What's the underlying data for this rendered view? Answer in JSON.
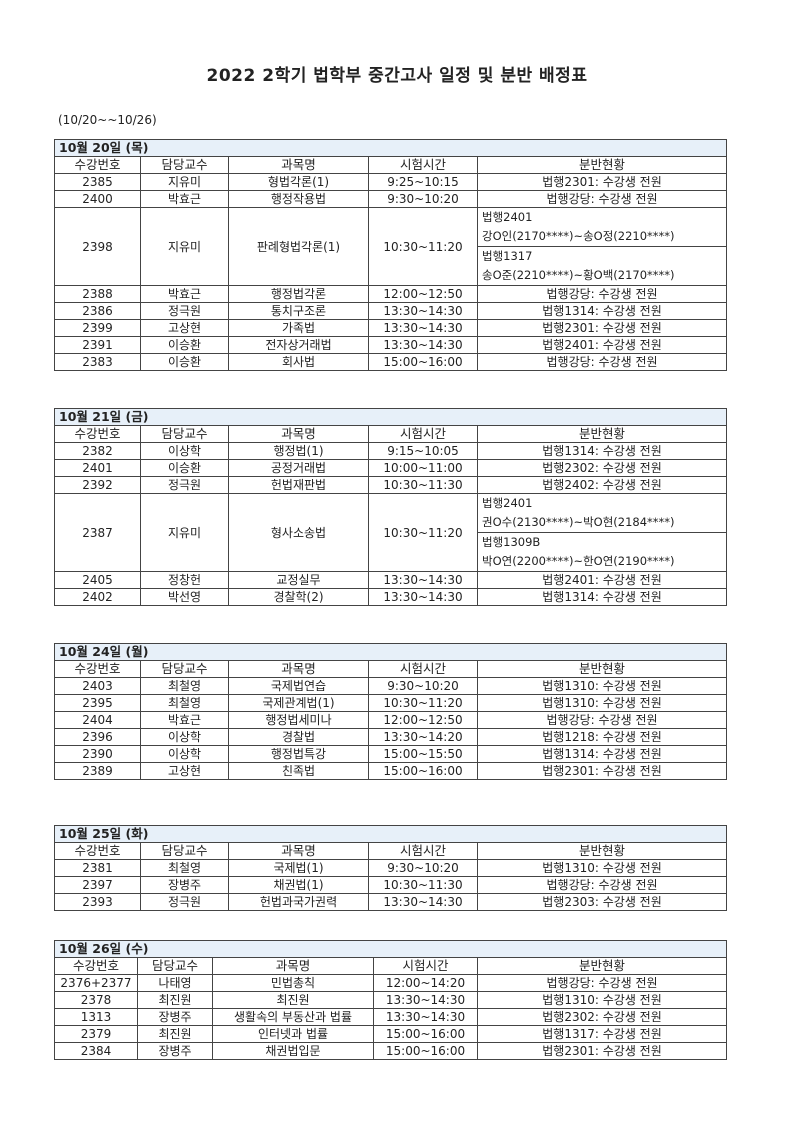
{
  "title": "2022 2학기 법학부 중간고사 일정 및 분반 배정표",
  "period": "(10/20~~10/26)",
  "headers": [
    "수강번호",
    "담당교수",
    "과목명",
    "시험시간",
    "분반현황"
  ],
  "days": [
    {
      "date": "10월 20일 (목)",
      "rows": [
        {
          "no": "2385",
          "prof": "지유미",
          "course": "형법각론(1)",
          "time": "9:25~10:15",
          "room": "법행2301: 수강생 전원"
        },
        {
          "no": "2400",
          "prof": "박효근",
          "course": "행정작용법",
          "time": "9:30~10:20",
          "room": "법행강당: 수강생 전원"
        },
        {
          "no": "2398",
          "prof": "지유미",
          "course": "판례형법각론(1)",
          "time": "10:30~11:20",
          "splits": [
            {
              "room": "법행2401",
              "students": "강O인(2170****)~송O정(2210****)"
            },
            {
              "room": "법행1317",
              "students": "송O준(2210****)~황O백(2170****)"
            }
          ]
        },
        {
          "no": "2388",
          "prof": "박효근",
          "course": "행정법각론",
          "time": "12:00~12:50",
          "room": "법행강당: 수강생 전원"
        },
        {
          "no": "2386",
          "prof": "정극원",
          "course": "통치구조론",
          "time": "13:30~14:30",
          "room": "법행1314: 수강생 전원"
        },
        {
          "no": "2399",
          "prof": "고상현",
          "course": "가족법",
          "time": "13:30~14:30",
          "room": "법행2301: 수강생 전원"
        },
        {
          "no": "2391",
          "prof": "이승환",
          "course": "전자상거래법",
          "time": "13:30~14:30",
          "room": "법행2401: 수강생 전원"
        },
        {
          "no": "2383",
          "prof": "이승환",
          "course": "회사법",
          "time": "15:00~16:00",
          "room": "법행강당: 수강생 전원"
        }
      ]
    },
    {
      "date": "10월 21일 (금)",
      "rows": [
        {
          "no": "2382",
          "prof": "이상학",
          "course": "행정법(1)",
          "time": "9:15~10:05",
          "room": "법행1314: 수강생 전원"
        },
        {
          "no": "2401",
          "prof": "이승환",
          "course": "공정거래법",
          "time": "10:00~11:00",
          "room": "법행2302: 수강생 전원"
        },
        {
          "no": "2392",
          "prof": "정극원",
          "course": "헌법재판법",
          "time": "10:30~11:30",
          "room": "법행2402: 수강생 전원"
        },
        {
          "no": "2387",
          "prof": "지유미",
          "course": "형사소송법",
          "time": "10:30~11:20",
          "splits": [
            {
              "room": "법행2401",
              "students": "권O수(2130****)~박O현(2184****)"
            },
            {
              "room": "법행1309B",
              "students": "박O연(2200****)~한O연(2190****)"
            }
          ]
        },
        {
          "no": "2405",
          "prof": "정창헌",
          "course": "교정실무",
          "time": "13:30~14:30",
          "room": "법행2401: 수강생 전원"
        },
        {
          "no": "2402",
          "prof": "박선영",
          "course": "경찰학(2)",
          "time": "13:30~14:30",
          "room": "법행1314: 수강생 전원"
        }
      ]
    },
    {
      "date": "10월 24일 (월)",
      "rows": [
        {
          "no": "2403",
          "prof": "최철영",
          "course": "국제법연습",
          "time": "9:30~10:20",
          "room": "법행1310: 수강생 전원"
        },
        {
          "no": "2395",
          "prof": "최철영",
          "course": "국제관계법(1)",
          "time": "10:30~11:20",
          "room": "법행1310: 수강생 전원"
        },
        {
          "no": "2404",
          "prof": "박효근",
          "course": "행정법세미나",
          "time": "12:00~12:50",
          "room": "법행강당: 수강생 전원"
        },
        {
          "no": "2396",
          "prof": "이상학",
          "course": "경찰법",
          "time": "13:30~14:20",
          "room": "법행1218: 수강생 전원"
        },
        {
          "no": "2390",
          "prof": "이상학",
          "course": "행정법특강",
          "time": "15:00~15:50",
          "room": "법행1314: 수강생 전원"
        },
        {
          "no": "2389",
          "prof": "고상현",
          "course": "친족법",
          "time": "15:00~16:00",
          "room": "법행2301: 수강생 전원"
        }
      ]
    },
    {
      "date": "10월 25일 (화)",
      "rows": [
        {
          "no": "2381",
          "prof": "최철영",
          "course": "국제법(1)",
          "time": "9:30~10:20",
          "room": "법행1310: 수강생 전원"
        },
        {
          "no": "2397",
          "prof": "장병주",
          "course": "채권법(1)",
          "time": "10:30~11:30",
          "room": "법행강당: 수강생 전원"
        },
        {
          "no": "2393",
          "prof": "정극원",
          "course": "헌법과국가권력",
          "time": "13:30~14:30",
          "room": "법행2303: 수강생 전원"
        }
      ]
    },
    {
      "date": "10월 26일 (수)",
      "rows": [
        {
          "no": "2376+2377",
          "prof": "나태영",
          "course": "민법총칙",
          "time": "12:00~14:20",
          "room": "법행강당: 수강생 전원"
        },
        {
          "no": "2378",
          "prof": "최진원",
          "course": "최진원",
          "time": "13:30~14:30",
          "room": "법행1310: 수강생 전원"
        },
        {
          "no": "1313",
          "prof": "장병주",
          "course": "생활속의 부동산과 법률",
          "time": "13:30~14:30",
          "room": "법행2302: 수강생 전원"
        },
        {
          "no": "2379",
          "prof": "최진원",
          "course": "인터넷과 법률",
          "time": "15:00~16:00",
          "room": "법행1317: 수강생 전원"
        },
        {
          "no": "2384",
          "prof": "장병주",
          "course": "채권법입문",
          "time": "15:00~16:00",
          "room": "법행2301: 수강생 전원"
        }
      ]
    }
  ]
}
